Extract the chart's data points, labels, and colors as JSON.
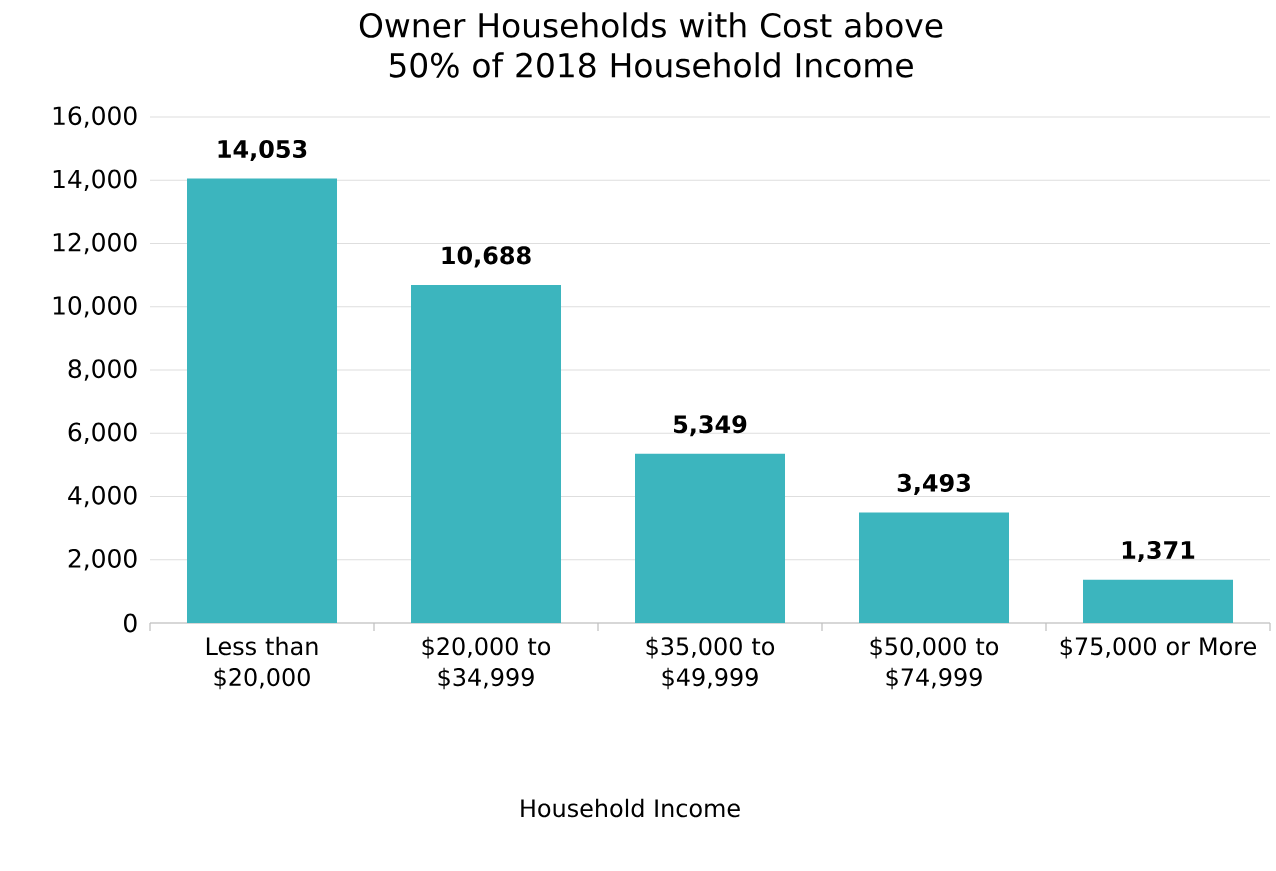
{
  "chart_data": {
    "type": "bar",
    "title": "Owner Households with Cost above 50% of 2018 Household Income",
    "xlabel": "Household Income",
    "categories": [
      "Less than $20,000",
      "$20,000 to $34,999",
      "$35,000 to $49,999",
      "$50,000 to $74,999",
      "$75,000 or More"
    ],
    "values": [
      14053,
      10688,
      5349,
      3493,
      1371
    ],
    "color": "#3cb5be",
    "ylim": [
      0,
      16000
    ],
    "yticks": [
      0,
      {
        "value": 2000,
        "label": "2,000"
      },
      {
        "value": 4000,
        "label": "4,000"
      },
      {
        "value": 6000,
        "label": "6,000"
      },
      {
        "value": 8000,
        "label": "8,000"
      },
      {
        "value": 10000,
        "label": "10,000"
      },
      {
        "value": 12000,
        "label": "12,000"
      },
      {
        "value": 14000,
        "label": "14,000"
      },
      {
        "value": 16000,
        "label": "16,000"
      }
    ],
    "value_labels": [
      "14,053",
      "10,688",
      "5,349",
      "3,493",
      "1,371"
    ],
    "grid": "y"
  }
}
